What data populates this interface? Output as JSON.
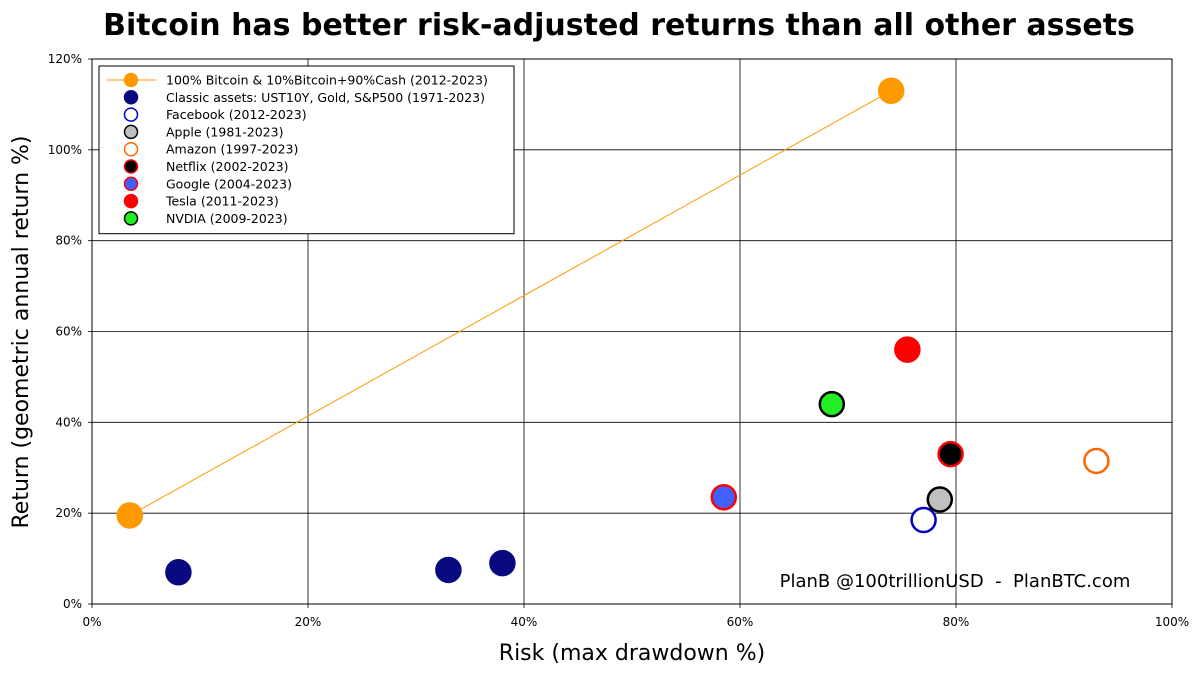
{
  "chart_data": {
    "type": "scatter",
    "title": "Bitcoin has better risk-adjusted returns than all other assets",
    "xlabel": "Risk (max drawdown %)",
    "ylabel": "Return (geometric annual return %)",
    "xlim": [
      0,
      100
    ],
    "ylim": [
      0,
      120
    ],
    "x_ticks": [
      "0%",
      "20%",
      "40%",
      "60%",
      "80%",
      "100%"
    ],
    "y_ticks": [
      "0%",
      "20%",
      "40%",
      "60%",
      "80%",
      "100%",
      "120%"
    ],
    "grid": true,
    "legend_position": "top-left",
    "annotation": "PlanB @100trillionUSD  -  PlanBTC.com",
    "series": [
      {
        "name": "100% Bitcoin & 10%Bitcoin+90%Cash (2012-2023)",
        "fill": "#ff9900",
        "stroke": "#ff9900",
        "line": true,
        "points": [
          {
            "x": 3.5,
            "y": 19.5
          },
          {
            "x": 74,
            "y": 113
          }
        ]
      },
      {
        "name": "Classic assets: UST10Y, Gold, S&P500 (1971-2023)",
        "fill": "#0a0a80",
        "stroke": "#0a0a80",
        "line": false,
        "points": [
          {
            "x": 8,
            "y": 7
          },
          {
            "x": 33,
            "y": 7.5
          },
          {
            "x": 38,
            "y": 9
          }
        ]
      },
      {
        "name": "Facebook (2012-2023)",
        "fill": "#ffffff",
        "stroke": "#0000cc",
        "line": false,
        "points": [
          {
            "x": 77,
            "y": 18.5
          }
        ]
      },
      {
        "name": "Apple (1981-2023)",
        "fill": "#c0c0c0",
        "stroke": "#000000",
        "line": false,
        "points": [
          {
            "x": 78.5,
            "y": 23
          }
        ]
      },
      {
        "name": "Amazon (1997-2023)",
        "fill": "#ffffff",
        "stroke": "#ff6600",
        "line": false,
        "points": [
          {
            "x": 93,
            "y": 31.5
          }
        ]
      },
      {
        "name": "Netflix (2002-2023)",
        "fill": "#000000",
        "stroke": "#ff0000",
        "line": false,
        "points": [
          {
            "x": 79.5,
            "y": 33
          }
        ]
      },
      {
        "name": "Google (2004-2023)",
        "fill": "#4060ff",
        "stroke": "#ff0000",
        "line": false,
        "points": [
          {
            "x": 58.5,
            "y": 23.5
          }
        ]
      },
      {
        "name": "Tesla (2011-2023)",
        "fill": "#ff0000",
        "stroke": "#ff0000",
        "line": false,
        "points": [
          {
            "x": 75.5,
            "y": 56
          }
        ]
      },
      {
        "name": "NVDIA (2009-2023)",
        "fill": "#22ee22",
        "stroke": "#000000",
        "line": false,
        "points": [
          {
            "x": 68.5,
            "y": 44
          }
        ]
      }
    ]
  }
}
